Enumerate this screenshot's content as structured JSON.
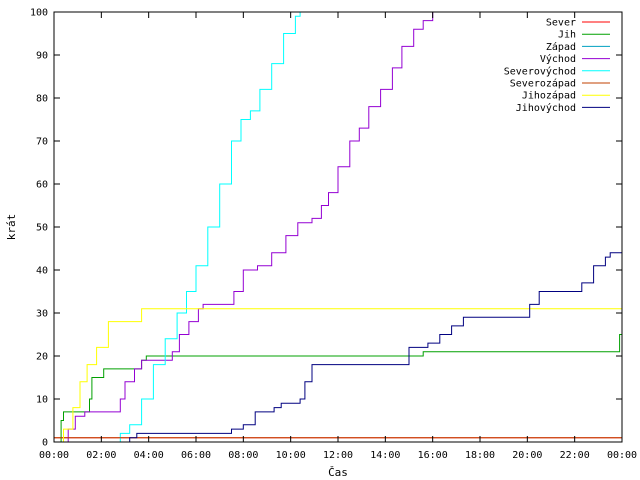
{
  "chart_data": {
    "type": "line",
    "title": "",
    "xlabel": "Čas",
    "ylabel": "krát",
    "xlim": [
      0,
      24
    ],
    "ylim": [
      0,
      100
    ],
    "xticks": [
      "00:00",
      "02:00",
      "04:00",
      "06:00",
      "08:00",
      "10:00",
      "12:00",
      "14:00",
      "16:00",
      "18:00",
      "20:00",
      "22:00",
      "00:00"
    ],
    "yticks": [
      0,
      10,
      20,
      30,
      40,
      50,
      60,
      70,
      80,
      90,
      100
    ],
    "grid": false,
    "legend": "top-right",
    "series": [
      {
        "name": "Sever",
        "color": "#ff0000",
        "points": [
          [
            0,
            1
          ],
          [
            24,
            1
          ]
        ]
      },
      {
        "name": "Jih",
        "color": "#00a000",
        "points": [
          [
            0,
            0
          ],
          [
            0.3,
            5
          ],
          [
            0.4,
            7
          ],
          [
            1.2,
            7
          ],
          [
            1.5,
            10
          ],
          [
            1.6,
            15
          ],
          [
            2.0,
            15
          ],
          [
            2.1,
            17
          ],
          [
            3.5,
            17
          ],
          [
            3.7,
            19
          ],
          [
            3.9,
            20
          ],
          [
            7.0,
            20
          ],
          [
            15.5,
            20
          ],
          [
            15.6,
            21
          ],
          [
            23.8,
            21
          ],
          [
            23.9,
            25
          ],
          [
            24,
            25
          ]
        ]
      },
      {
        "name": "Západ",
        "color": "#00a0c0",
        "points": [
          [
            0,
            0
          ],
          [
            24,
            0
          ]
        ]
      },
      {
        "name": "Východ",
        "color": "#9400d3",
        "points": [
          [
            0.3,
            0
          ],
          [
            0.6,
            3
          ],
          [
            0.9,
            6
          ],
          [
            1.3,
            7
          ],
          [
            2.6,
            7
          ],
          [
            2.8,
            10
          ],
          [
            3.0,
            14
          ],
          [
            3.4,
            17
          ],
          [
            3.7,
            19
          ],
          [
            4.8,
            19
          ],
          [
            5.0,
            21
          ],
          [
            5.3,
            25
          ],
          [
            5.7,
            28
          ],
          [
            6.1,
            31
          ],
          [
            6.3,
            32
          ],
          [
            7.3,
            32
          ],
          [
            7.6,
            35
          ],
          [
            8.0,
            40
          ],
          [
            8.6,
            41
          ],
          [
            9.2,
            44
          ],
          [
            9.8,
            48
          ],
          [
            10.3,
            51
          ],
          [
            10.9,
            52
          ],
          [
            11.3,
            55
          ],
          [
            11.6,
            58
          ],
          [
            12.0,
            64
          ],
          [
            12.5,
            70
          ],
          [
            12.9,
            73
          ],
          [
            13.3,
            78
          ],
          [
            13.8,
            82
          ],
          [
            14.3,
            87
          ],
          [
            14.7,
            92
          ],
          [
            15.2,
            96
          ],
          [
            15.6,
            98
          ],
          [
            16.0,
            100
          ]
        ]
      },
      {
        "name": "Severovýchod",
        "color": "#00ffff",
        "points": [
          [
            2.5,
            0
          ],
          [
            2.8,
            2
          ],
          [
            3.2,
            4
          ],
          [
            3.7,
            10
          ],
          [
            4.2,
            18
          ],
          [
            4.7,
            24
          ],
          [
            5.2,
            30
          ],
          [
            5.6,
            35
          ],
          [
            6.0,
            41
          ],
          [
            6.5,
            50
          ],
          [
            7.0,
            60
          ],
          [
            7.5,
            70
          ],
          [
            7.9,
            75
          ],
          [
            8.3,
            77
          ],
          [
            8.7,
            82
          ],
          [
            9.2,
            88
          ],
          [
            9.7,
            95
          ],
          [
            10.2,
            99
          ],
          [
            10.4,
            100
          ]
        ]
      },
      {
        "name": "Severozápad",
        "color": "#c04000",
        "points": [
          [
            0,
            1
          ],
          [
            24,
            1
          ]
        ]
      },
      {
        "name": "Jihozápad",
        "color": "#ffff00",
        "points": [
          [
            0.1,
            0
          ],
          [
            0.4,
            3
          ],
          [
            0.8,
            8
          ],
          [
            1.1,
            14
          ],
          [
            1.4,
            18
          ],
          [
            1.8,
            22
          ],
          [
            2.3,
            28
          ],
          [
            3.5,
            28
          ],
          [
            3.7,
            31
          ],
          [
            24,
            31
          ]
        ]
      },
      {
        "name": "Jihovýchod",
        "color": "#000080",
        "points": [
          [
            3.0,
            0
          ],
          [
            3.2,
            1
          ],
          [
            3.5,
            2
          ],
          [
            7.0,
            2
          ],
          [
            7.5,
            3
          ],
          [
            8.0,
            4
          ],
          [
            8.5,
            7
          ],
          [
            9.3,
            8
          ],
          [
            9.6,
            9
          ],
          [
            10.4,
            10
          ],
          [
            10.6,
            14
          ],
          [
            10.9,
            18
          ],
          [
            14.8,
            18
          ],
          [
            15.0,
            22
          ],
          [
            15.8,
            23
          ],
          [
            16.3,
            25
          ],
          [
            16.8,
            27
          ],
          [
            17.3,
            29
          ],
          [
            20.0,
            29
          ],
          [
            20.1,
            32
          ],
          [
            20.5,
            35
          ],
          [
            21.8,
            35
          ],
          [
            22.3,
            37
          ],
          [
            22.8,
            41
          ],
          [
            23.3,
            43
          ],
          [
            23.5,
            44
          ],
          [
            24,
            44
          ]
        ]
      }
    ]
  }
}
